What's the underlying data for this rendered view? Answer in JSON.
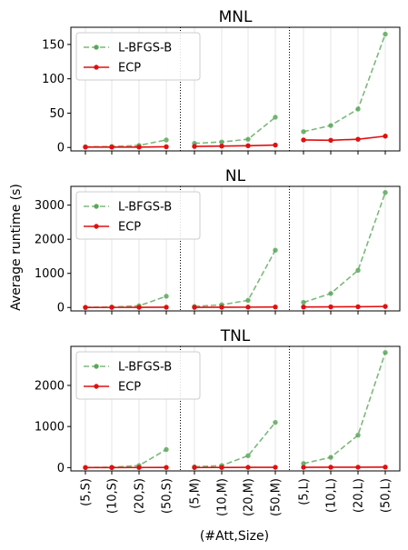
{
  "figure": {
    "ylabel": "Average runtime (s)",
    "xlabel": "(#Att,Size)"
  },
  "chart_data": [
    {
      "type": "line",
      "title": "MNL",
      "categories": [
        "(5,S)",
        "(10,S)",
        "(20,S)",
        "(50,S)",
        "(5,M)",
        "(10,M)",
        "(20,M)",
        "(50,M)",
        "(5,L)",
        "(10,L)",
        "(20,L)",
        "(50,L)"
      ],
      "groups": [
        [
          0,
          3
        ],
        [
          4,
          7
        ],
        [
          8,
          11
        ]
      ],
      "ylim": [
        -5,
        175
      ],
      "yticks": [
        0,
        50,
        100,
        150
      ],
      "grid": "vertical",
      "legend": "upper-left",
      "series": [
        {
          "name": "L-BFGS-B",
          "color": "#5aa85a",
          "style": "dashed",
          "values": [
            1,
            1.5,
            3,
            11,
            6,
            8,
            12,
            44,
            23,
            32,
            56,
            165
          ]
        },
        {
          "name": "ECP",
          "color": "#e01010",
          "style": "solid",
          "values": [
            0.5,
            0.5,
            0.5,
            1,
            1.5,
            2,
            2.5,
            3.5,
            11,
            10.5,
            12,
            16.5
          ]
        }
      ]
    },
    {
      "type": "line",
      "title": "NL",
      "categories": [
        "(5,S)",
        "(10,S)",
        "(20,S)",
        "(50,S)",
        "(5,M)",
        "(10,M)",
        "(20,M)",
        "(50,M)",
        "(5,L)",
        "(10,L)",
        "(20,L)",
        "(50,L)"
      ],
      "groups": [
        [
          0,
          3
        ],
        [
          4,
          7
        ],
        [
          8,
          11
        ]
      ],
      "ylim": [
        -100,
        3550
      ],
      "yticks": [
        0,
        1000,
        2000,
        3000
      ],
      "grid": "vertical",
      "legend": "upper-left",
      "series": [
        {
          "name": "L-BFGS-B",
          "color": "#5aa85a",
          "style": "dashed",
          "values": [
            5,
            15,
            50,
            330,
            30,
            80,
            210,
            1680,
            150,
            410,
            1090,
            3370
          ]
        },
        {
          "name": "ECP",
          "color": "#e01010",
          "style": "solid",
          "values": [
            2,
            3,
            5,
            8,
            5,
            7,
            10,
            15,
            15,
            18,
            22,
            30
          ]
        }
      ]
    },
    {
      "type": "line",
      "title": "TNL",
      "categories": [
        "(5,S)",
        "(10,S)",
        "(20,S)",
        "(50,S)",
        "(5,M)",
        "(10,M)",
        "(20,M)",
        "(50,M)",
        "(5,L)",
        "(10,L)",
        "(20,L)",
        "(50,L)"
      ],
      "groups": [
        [
          0,
          3
        ],
        [
          4,
          7
        ],
        [
          8,
          11
        ]
      ],
      "ylim": [
        -80,
        2950
      ],
      "yticks": [
        0,
        1000,
        2000
      ],
      "grid": "vertical",
      "legend": "upper-left",
      "series": [
        {
          "name": "L-BFGS-B",
          "color": "#5aa85a",
          "style": "dashed",
          "values": [
            3,
            10,
            50,
            440,
            20,
            50,
            290,
            1100,
            100,
            250,
            790,
            2800
          ]
        },
        {
          "name": "ECP",
          "color": "#e01010",
          "style": "solid",
          "values": [
            1,
            2,
            3,
            5,
            3,
            4,
            6,
            8,
            8,
            9,
            10,
            12
          ]
        }
      ]
    }
  ]
}
